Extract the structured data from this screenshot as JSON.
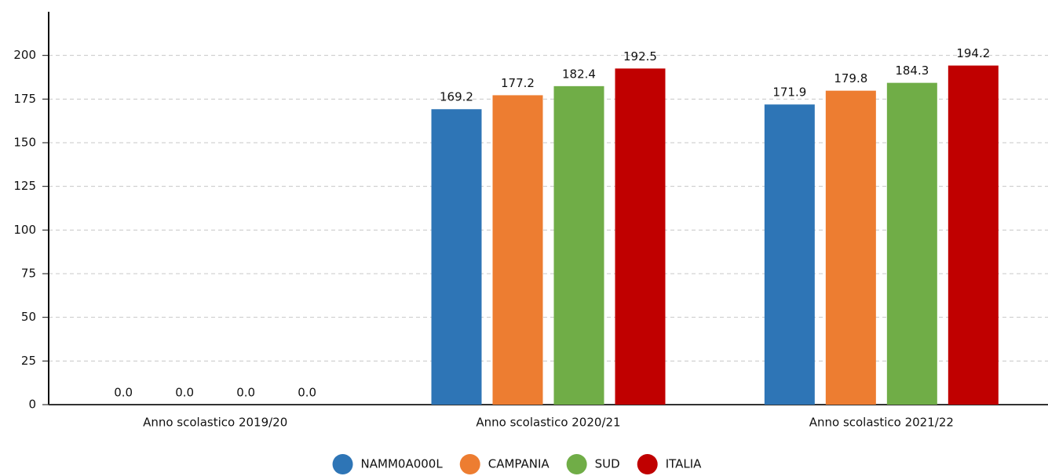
{
  "chart_data": {
    "type": "bar",
    "categories": [
      "Anno scolastico 2019/20",
      "Anno scolastico 2020/21",
      "Anno scolastico 2021/22"
    ],
    "series": [
      {
        "name": "NAMM0A000L",
        "color": "#2e75b6",
        "values": [
          0,
          169.2,
          171.9
        ],
        "value_labels": [
          "0.0",
          "169.2",
          "171.9"
        ]
      },
      {
        "name": "CAMPANIA",
        "color": "#ed7d31",
        "values": [
          0,
          177.2,
          179.8
        ],
        "value_labels": [
          "0.0",
          "177.2",
          "179.8"
        ]
      },
      {
        "name": "SUD",
        "color": "#70ad47",
        "values": [
          0,
          182.4,
          184.3
        ],
        "value_labels": [
          "0.0",
          "182.4",
          "184.3"
        ]
      },
      {
        "name": "ITALIA",
        "color": "#c00000",
        "values": [
          0,
          192.5,
          194.2
        ],
        "value_labels": [
          "0.0",
          "192.5",
          "194.2"
        ]
      }
    ],
    "ylim": [
      0,
      225
    ],
    "yticks": [
      0,
      25,
      50,
      75,
      100,
      125,
      150,
      175,
      200
    ],
    "grid": true,
    "legend": "bottom"
  }
}
